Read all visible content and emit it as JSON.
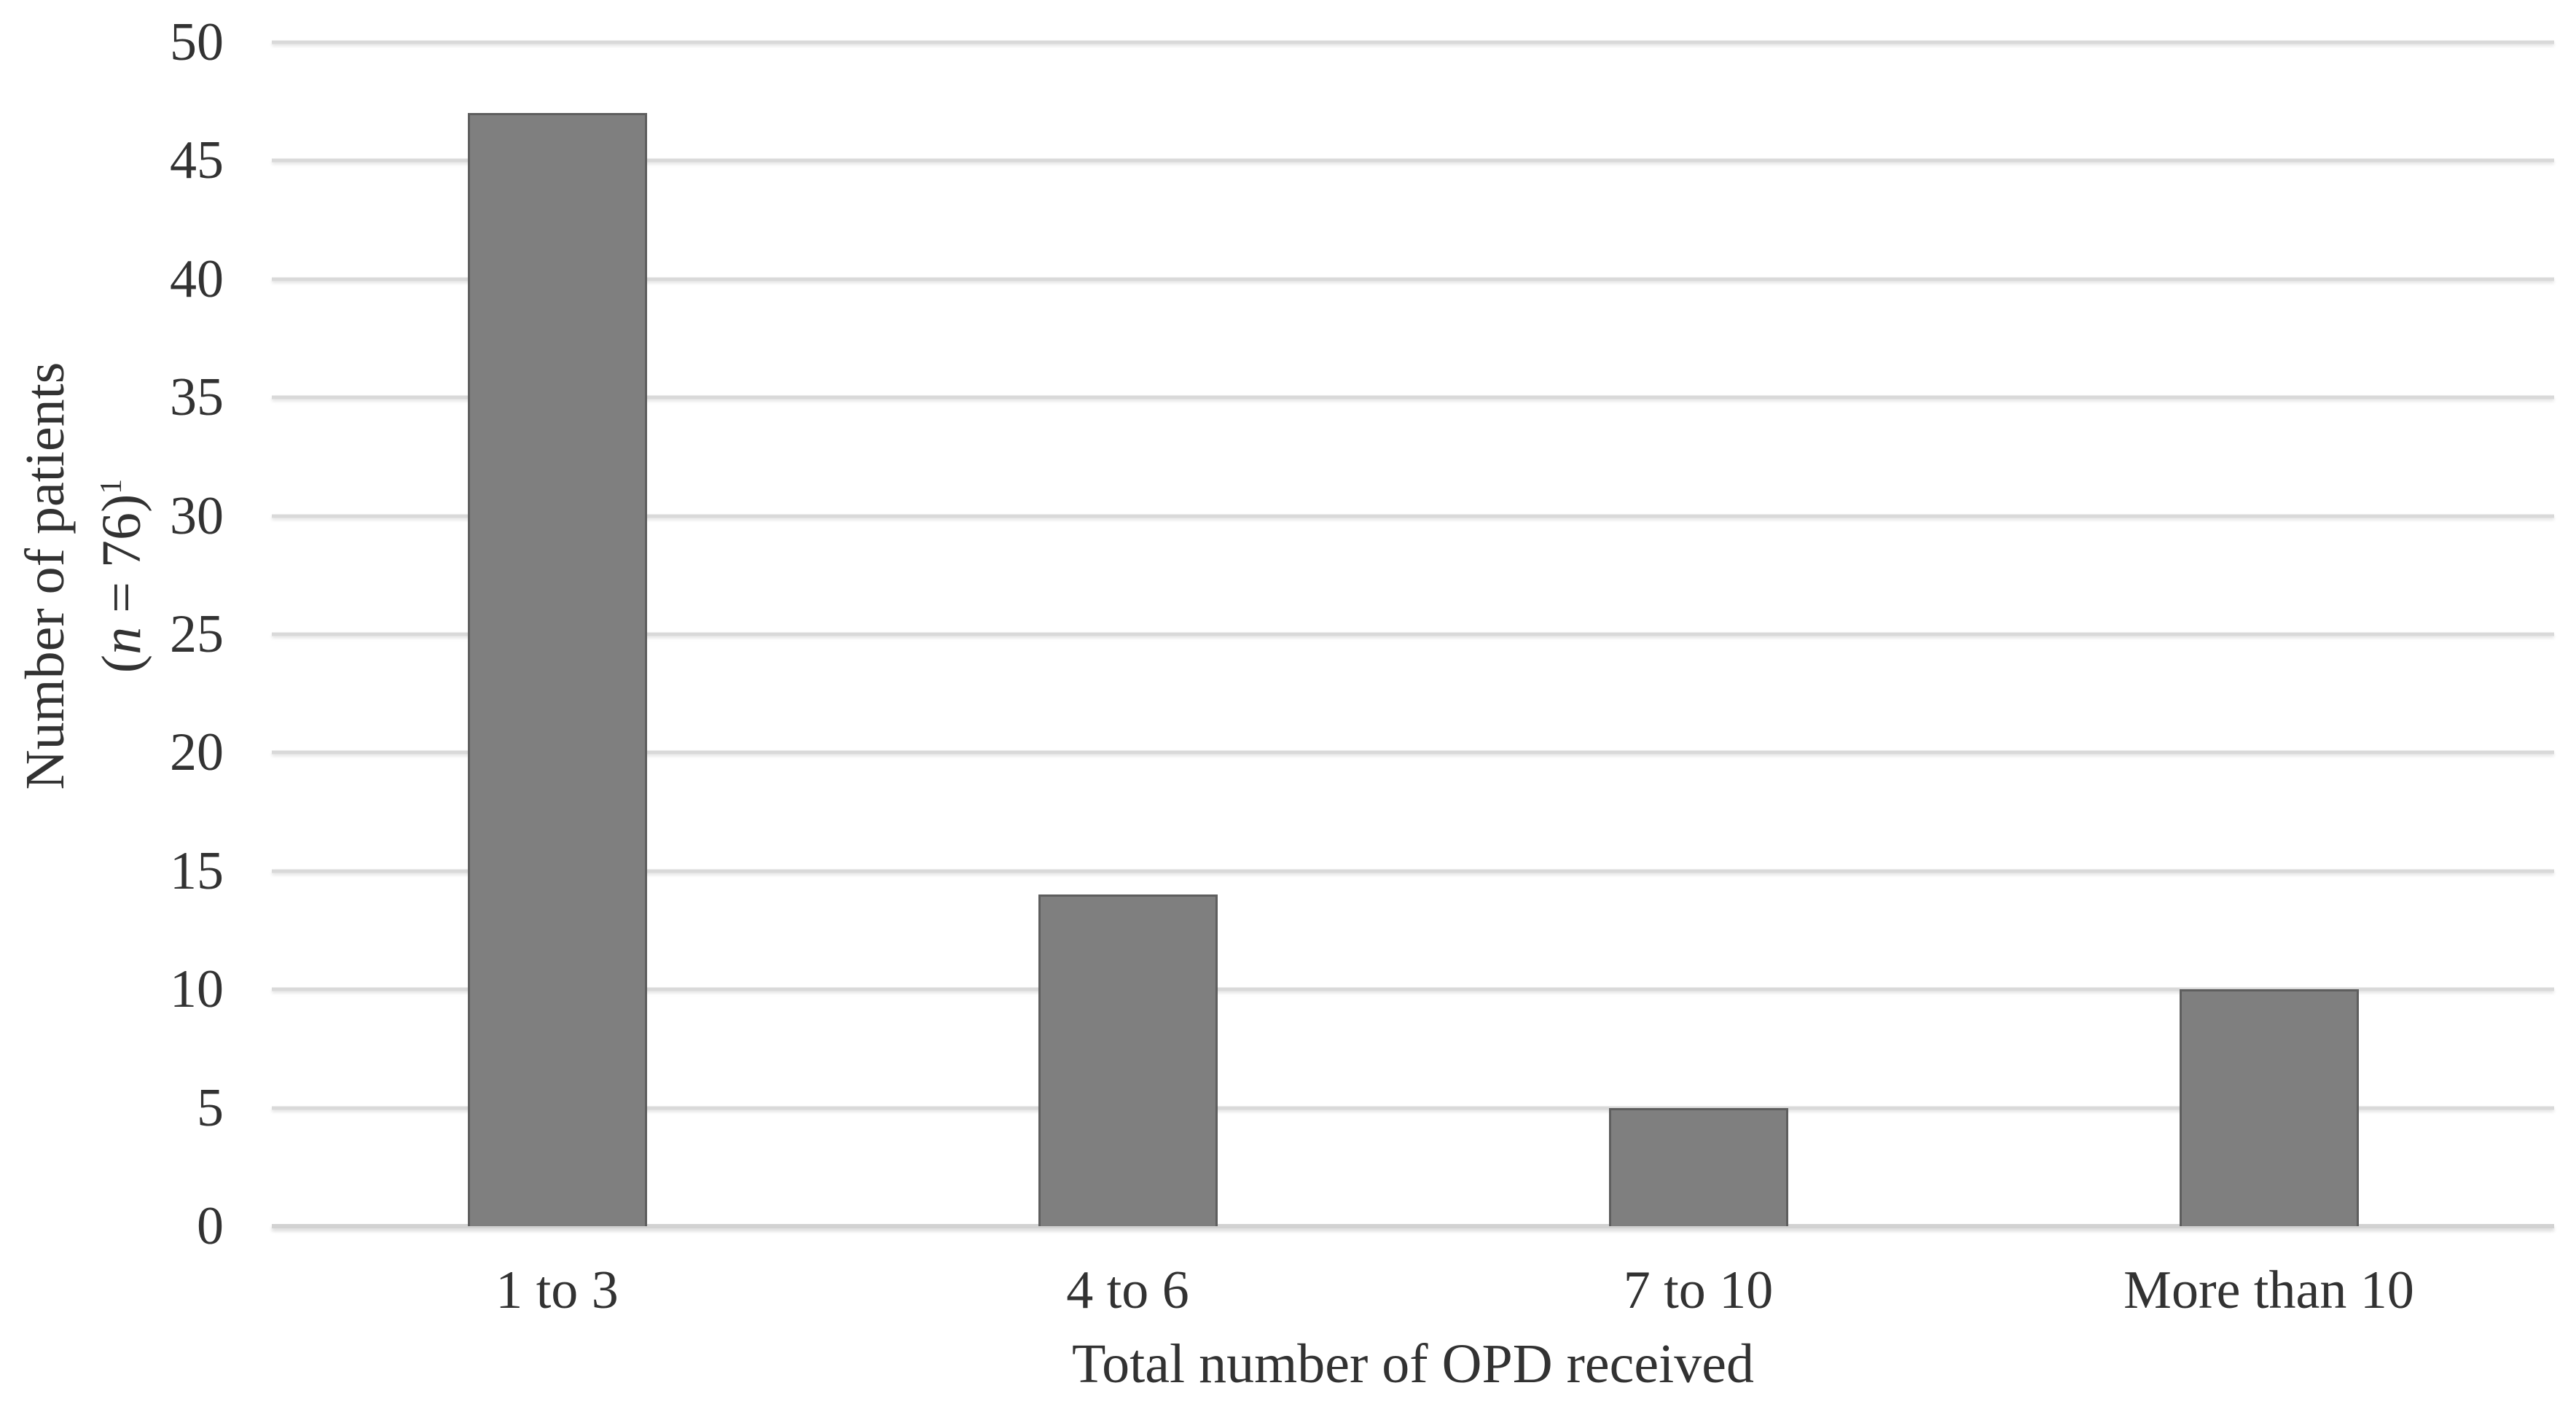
{
  "figure": {
    "background_color": "#ffffff",
    "text_color": "#323232"
  },
  "chart_data": {
    "type": "bar",
    "title": "",
    "categories": [
      "1 to 3",
      "4 to 6",
      "7 to 10",
      "More than 10"
    ],
    "values": [
      47,
      14,
      5,
      10
    ],
    "xlabel": "Total number of OPD received",
    "ylabel": {
      "line1": "Number of patients",
      "line2_open": "(",
      "line2_var": "n",
      "line2_rest": " = 76)",
      "superscript": "1"
    },
    "ylim": [
      0,
      50
    ],
    "ytick_step": 5,
    "yticks": [
      0,
      5,
      10,
      15,
      20,
      25,
      30,
      35,
      40,
      45,
      50
    ],
    "grid": "horizontal-on",
    "legend": "none",
    "bar_color": "#7f7f7f",
    "bar_border_color": "#5e5e5e",
    "gridline_color": "#d9d9d9",
    "axisline_color": "#d2d2d2"
  }
}
